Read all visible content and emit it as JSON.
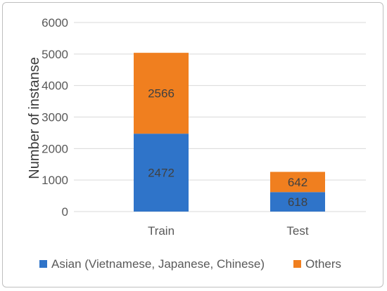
{
  "chart_data": {
    "type": "bar",
    "stacked": true,
    "categories": [
      "Train",
      "Test"
    ],
    "series": [
      {
        "name": "Asian (Vietnamese, Japanese, Chinese)",
        "values": [
          2472,
          618
        ],
        "color": "#2f74c9"
      },
      {
        "name": "Others",
        "values": [
          2566,
          642
        ],
        "color": "#f07f1f"
      }
    ],
    "ylabel": "Number of instanse",
    "ylim": [
      0,
      6000
    ],
    "yticks": [
      0,
      1000,
      2000,
      3000,
      4000,
      5000,
      6000
    ],
    "grid": "horizontal",
    "legend": "bottom"
  }
}
